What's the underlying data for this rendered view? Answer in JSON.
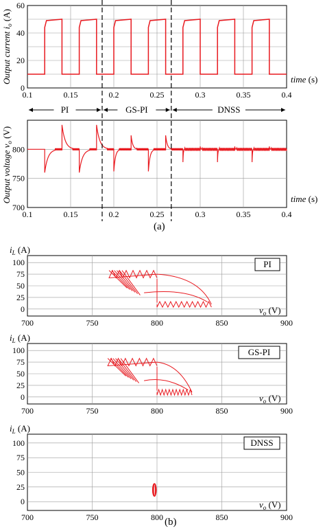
{
  "chart_data": [
    {
      "id": "current",
      "type": "line",
      "ylabel": "Output current",
      "ylabel_sym": "i",
      "ylabel_sub": "o",
      "ylabel_unit": "(A)",
      "xlabel": "time",
      "xlabel_unit": "(s)",
      "xlim": [
        0.1,
        0.4
      ],
      "ylim": [
        0,
        60
      ],
      "xticks": [
        0.1,
        0.15,
        0.2,
        0.25,
        0.3,
        0.35,
        0.4
      ],
      "xtick_labels": [
        "0.1",
        "0.15",
        "0.2",
        "0.25",
        "0.3",
        "0.35",
        "0.4"
      ],
      "yticks": [
        0,
        20,
        40,
        60
      ],
      "ytick_labels": [
        "0",
        "20",
        "40",
        "60"
      ],
      "grid": true,
      "color": "#e8191f",
      "series": [
        {
          "low_level": 10,
          "high_level": 50,
          "high_intervals": [
            [
              0.12,
              0.14
            ],
            [
              0.16,
              0.18
            ],
            [
              0.2,
              0.22
            ],
            [
              0.24,
              0.26
            ],
            [
              0.28,
              0.3
            ],
            [
              0.32,
              0.34
            ],
            [
              0.36,
              0.38
            ]
          ]
        }
      ],
      "regions": [
        {
          "label": "PI",
          "from": 0.1,
          "to": 0.1865
        },
        {
          "label": "GS-PI",
          "from": 0.1865,
          "to": 0.2665
        },
        {
          "label": "DNSS",
          "from": 0.2665,
          "to": 0.4
        }
      ]
    },
    {
      "id": "voltage",
      "type": "line",
      "ylabel": "Output voltage",
      "ylabel_sym": "v",
      "ylabel_sub": "o",
      "ylabel_unit": "(V)",
      "xlabel": "time",
      "xlabel_unit": "(s)",
      "xlim": [
        0.1,
        0.4
      ],
      "ylim": [
        700,
        850
      ],
      "xticks": [
        0.1,
        0.15,
        0.2,
        0.25,
        0.3,
        0.35,
        0.4
      ],
      "xtick_labels": [
        "0.1",
        "0.15",
        "0.2",
        "0.25",
        "0.3",
        "0.35",
        "0.4"
      ],
      "yticks": [
        700,
        750,
        800
      ],
      "ytick_labels": [
        "700",
        "750",
        "800"
      ],
      "grid": true,
      "color": "#e8191f",
      "series": [
        {
          "nominal": 800,
          "events": [
            {
              "t": 0.12,
              "dir": -1,
              "amp": 40,
              "ctrl": "PI"
            },
            {
              "t": 0.14,
              "dir": 1,
              "amp": 42,
              "ctrl": "PI"
            },
            {
              "t": 0.16,
              "dir": -1,
              "amp": 40,
              "ctrl": "PI"
            },
            {
              "t": 0.18,
              "dir": 1,
              "amp": 42,
              "ctrl": "PI"
            },
            {
              "t": 0.2,
              "dir": -1,
              "amp": 38,
              "ctrl": "GS-PI"
            },
            {
              "t": 0.22,
              "dir": 1,
              "amp": 24,
              "ctrl": "GS-PI"
            },
            {
              "t": 0.24,
              "dir": -1,
              "amp": 38,
              "ctrl": "GS-PI"
            },
            {
              "t": 0.26,
              "dir": 1,
              "amp": 24,
              "ctrl": "GS-PI"
            },
            {
              "t": 0.28,
              "dir": -1,
              "amp": 22,
              "ctrl": "DNSS"
            },
            {
              "t": 0.3,
              "dir": 1,
              "amp": 5,
              "ctrl": "DNSS"
            },
            {
              "t": 0.32,
              "dir": -1,
              "amp": 22,
              "ctrl": "DNSS"
            },
            {
              "t": 0.34,
              "dir": 1,
              "amp": 5,
              "ctrl": "DNSS"
            },
            {
              "t": 0.36,
              "dir": -1,
              "amp": 22,
              "ctrl": "DNSS"
            },
            {
              "t": 0.38,
              "dir": 1,
              "amp": 5,
              "ctrl": "DNSS"
            }
          ]
        }
      ]
    },
    {
      "id": "phase-pi",
      "type": "scatter",
      "legend": "PI",
      "ylabel_sym": "i",
      "ylabel_sub": "L",
      "ylabel_unit": "(A)",
      "xlabel_sym": "v",
      "xlabel_sub": "o",
      "xlabel_unit": "(V)",
      "xlim": [
        700,
        900
      ],
      "ylim": [
        -15,
        115
      ],
      "xticks": [
        700,
        750,
        800,
        850,
        900
      ],
      "xtick_labels": [
        "700",
        "750",
        "800",
        "850",
        "900"
      ],
      "yticks": [
        0,
        25,
        50,
        75,
        100
      ],
      "ytick_labels": [
        "0",
        "25",
        "50",
        "75",
        "100"
      ],
      "grid": true,
      "color": "#e8191f",
      "trajectory": {
        "vmin": 760,
        "vmax": 842,
        "high_i": 75,
        "low_i": 10,
        "high_band": [
          [
            763,
            800
          ]
        ],
        "low_band": [
          [
            800,
            842
          ]
        ],
        "overshoot": 842
      }
    },
    {
      "id": "phase-gspi",
      "type": "scatter",
      "legend": "GS-PI",
      "ylabel_sym": "i",
      "ylabel_sub": "L",
      "ylabel_unit": "(A)",
      "xlabel_sym": "v",
      "xlabel_sub": "o",
      "xlabel_unit": "(V)",
      "xlim": [
        700,
        900
      ],
      "ylim": [
        -15,
        115
      ],
      "xticks": [
        700,
        750,
        800,
        850,
        900
      ],
      "xtick_labels": [
        "700",
        "750",
        "800",
        "850",
        "900"
      ],
      "yticks": [
        0,
        25,
        50,
        75,
        100
      ],
      "ytick_labels": [
        "0",
        "25",
        "50",
        "75",
        "100"
      ],
      "grid": true,
      "color": "#e8191f",
      "trajectory": {
        "vmin": 760,
        "vmax": 827,
        "high_i": 75,
        "low_i": 10,
        "high_band": [
          [
            762,
            800
          ]
        ],
        "low_band": [
          [
            800,
            827
          ]
        ],
        "overshoot": 827
      }
    },
    {
      "id": "phase-dnss",
      "type": "scatter",
      "legend": "DNSS",
      "ylabel_sym": "i",
      "ylabel_sub": "L",
      "ylabel_unit": "(A)",
      "xlabel_sym": "v",
      "xlabel_sub": "o",
      "xlabel_unit": "(V)",
      "xlim": [
        700,
        900
      ],
      "ylim": [
        -15,
        115
      ],
      "xticks": [
        700,
        750,
        800,
        850,
        900
      ],
      "xtick_labels": [
        "700",
        "750",
        "800",
        "850",
        "900"
      ],
      "yticks": [
        0,
        25,
        50,
        75,
        100
      ],
      "ytick_labels": [
        "0",
        "25",
        "50",
        "75",
        "100"
      ],
      "grid": true,
      "color": "#e8191f",
      "trajectory": {
        "center_v": 798,
        "center_i": 20,
        "half_width_v": 1.5,
        "half_height_i": 11
      }
    }
  ],
  "captions": {
    "a": "(a)",
    "b": "(b)"
  },
  "colors": {
    "trace": "#e8191f",
    "grid": "#9a9a9a",
    "axis": "#000000"
  }
}
